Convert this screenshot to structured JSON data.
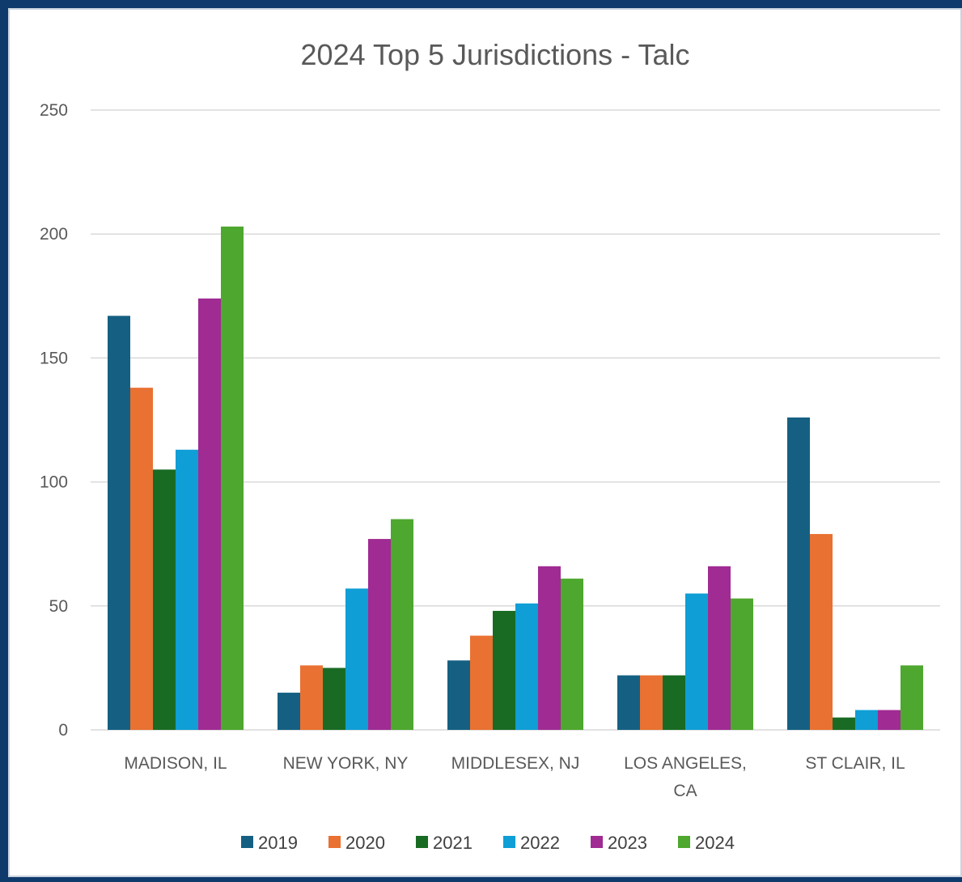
{
  "chart_data": {
    "type": "bar",
    "title": "2024 Top 5 Jurisdictions - Talc",
    "xlabel": "",
    "ylabel": "",
    "ylim": [
      0,
      250
    ],
    "yticks": [
      "0",
      "50",
      "100",
      "150",
      "200",
      "250"
    ],
    "grid": true,
    "legend_position": "bottom",
    "categories": [
      [
        "MADISON, IL"
      ],
      [
        "NEW YORK, NY"
      ],
      [
        "MIDDLESEX, NJ"
      ],
      [
        "LOS ANGELES,",
        "CA"
      ],
      [
        "ST CLAIR, IL"
      ]
    ],
    "series": [
      {
        "name": "2019",
        "color": "#156082",
        "values": [
          167,
          15,
          28,
          22,
          126
        ]
      },
      {
        "name": "2020",
        "color": "#e97132",
        "values": [
          138,
          26,
          38,
          22,
          79
        ]
      },
      {
        "name": "2021",
        "color": "#196b24",
        "values": [
          105,
          25,
          48,
          22,
          5
        ]
      },
      {
        "name": "2022",
        "color": "#0f9ed5",
        "values": [
          113,
          57,
          51,
          55,
          8
        ]
      },
      {
        "name": "2023",
        "color": "#a02b93",
        "values": [
          174,
          77,
          66,
          66,
          8
        ]
      },
      {
        "name": "2024",
        "color": "#4ea72e",
        "values": [
          203,
          85,
          61,
          53,
          26
        ]
      }
    ]
  }
}
